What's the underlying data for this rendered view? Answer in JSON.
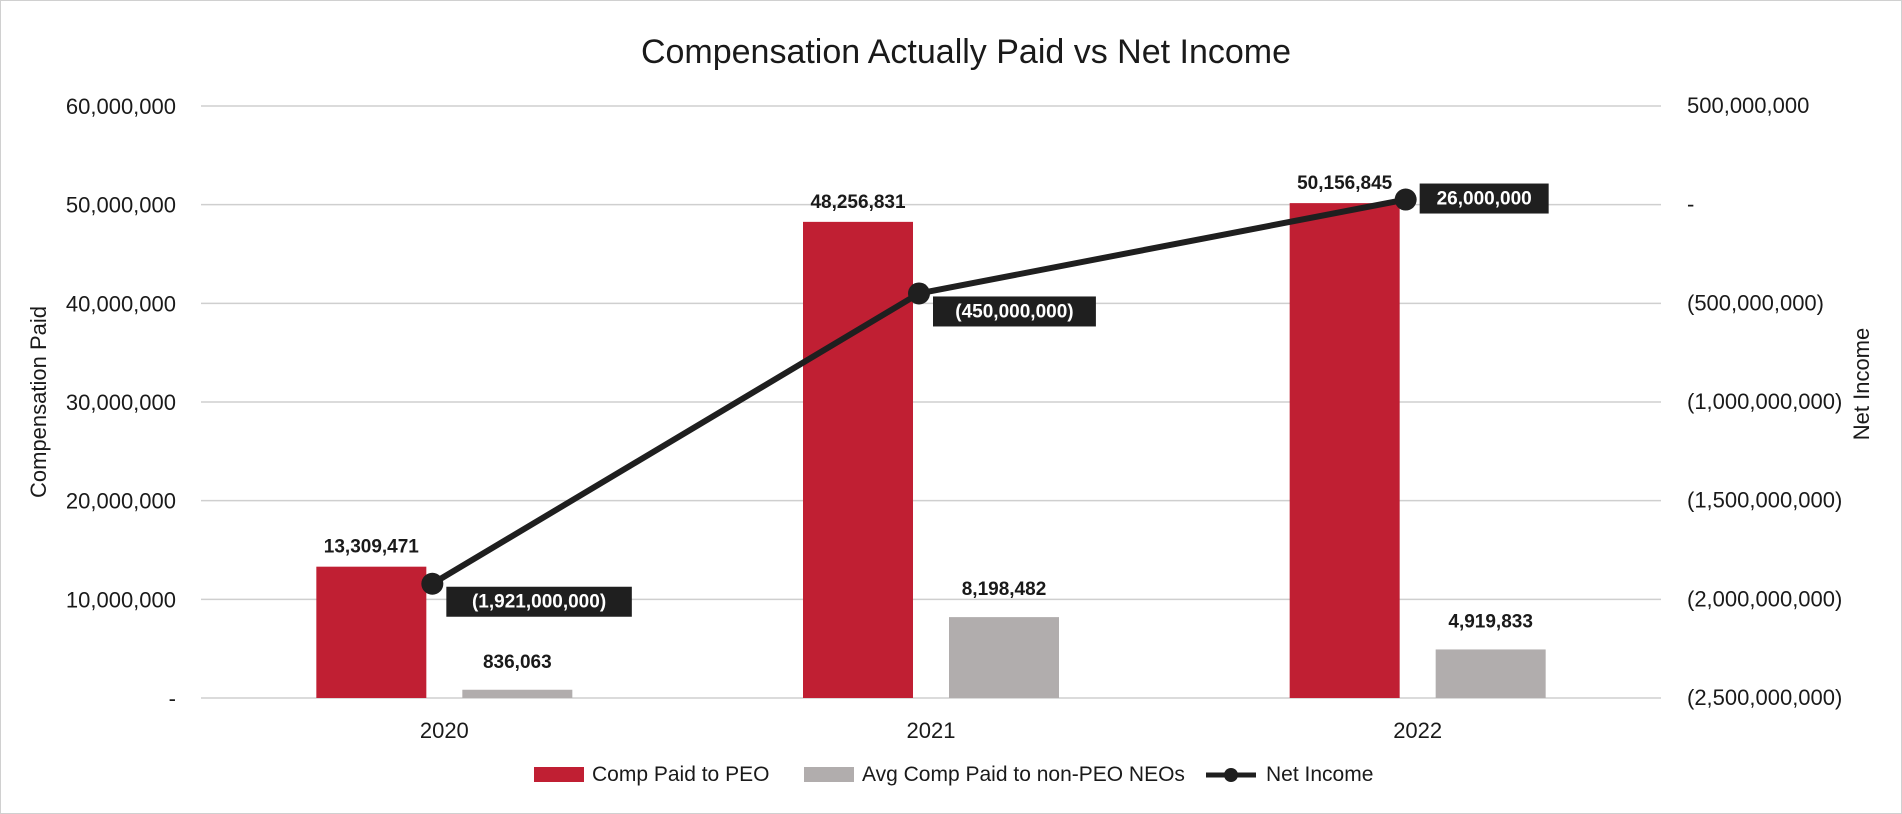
{
  "chart_data": {
    "type": "bar",
    "title": "Compensation Actually Paid vs Net Income",
    "categories": [
      "2020",
      "2021",
      "2022"
    ],
    "ylabel": "Compensation Paid",
    "y2label": "Net Income",
    "ylim": [
      0,
      60000000
    ],
    "y2lim": [
      -2500000000,
      500000000
    ],
    "yticks": [
      {
        "value": 0,
        "label": "-"
      },
      {
        "value": 10000000,
        "label": "10,000,000"
      },
      {
        "value": 20000000,
        "label": "20,000,000"
      },
      {
        "value": 30000000,
        "label": "30,000,000"
      },
      {
        "value": 40000000,
        "label": "40,000,000"
      },
      {
        "value": 50000000,
        "label": "50,000,000"
      },
      {
        "value": 60000000,
        "label": "60,000,000"
      }
    ],
    "y2ticks": [
      {
        "value": -2500000000,
        "label": "(2,500,000,000)"
      },
      {
        "value": -2000000000,
        "label": "(2,000,000,000)"
      },
      {
        "value": -1500000000,
        "label": "(1,500,000,000)"
      },
      {
        "value": -1000000000,
        "label": "(1,000,000,000)"
      },
      {
        "value": -500000000,
        "label": "(500,000,000)"
      },
      {
        "value": 0,
        "label": "-"
      },
      {
        "value": 500000000,
        "label": "500,000,000"
      }
    ],
    "series": [
      {
        "name": "Comp Paid to PEO",
        "type": "bar",
        "axis": "left",
        "color": "#c01f33",
        "values": [
          13309471,
          48256831,
          50156845
        ],
        "labels": [
          "13,309,471",
          "48,256,831",
          "50,156,845"
        ]
      },
      {
        "name": "Avg Comp Paid to non-PEO NEOs",
        "type": "bar",
        "axis": "left",
        "color": "#b1adad",
        "values": [
          836063,
          8198482,
          4919833
        ],
        "labels": [
          "836,063",
          "8,198,482",
          "4,919,833"
        ]
      },
      {
        "name": "Net Income",
        "type": "line",
        "axis": "right",
        "color": "#1f1f1f",
        "values": [
          -1921000000,
          -450000000,
          26000000
        ],
        "labels": [
          "(1,921,000,000)",
          "(450,000,000)",
          "26,000,000"
        ]
      }
    ],
    "legend_position": "bottom-center"
  }
}
